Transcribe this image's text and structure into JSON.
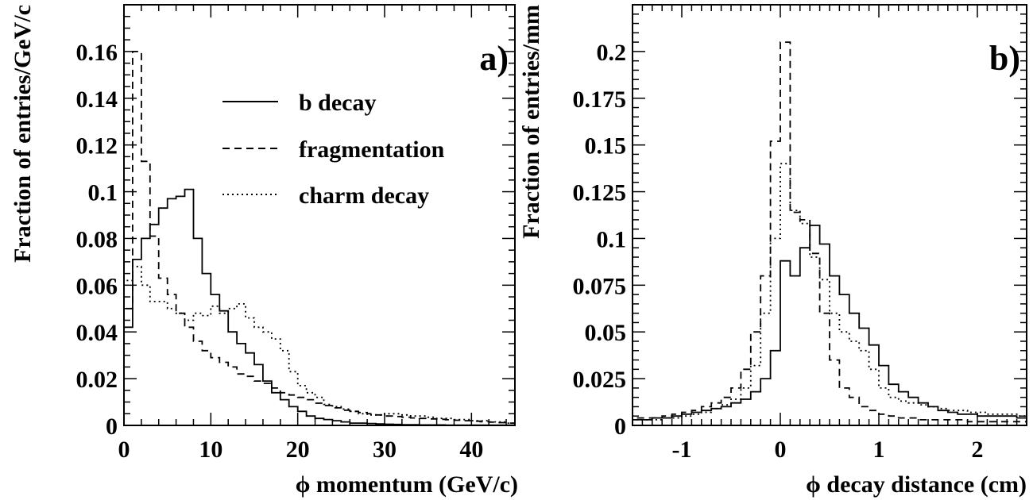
{
  "chart_data": [
    {
      "type": "histogram",
      "panel_label": "a)",
      "xlabel": "ϕ momentum (GeV/c)",
      "ylabel": "Fraction of entries/GeV/c",
      "xlim": [
        0,
        45
      ],
      "ylim": [
        0,
        0.18
      ],
      "x_ticks": [
        0,
        10,
        20,
        30,
        40
      ],
      "y_ticks": [
        0,
        0.02,
        0.04,
        0.06,
        0.08,
        0.1,
        0.12,
        0.14,
        0.16
      ],
      "y_tick_labels": [
        "0",
        "0.02",
        "0.04",
        "0.06",
        "0.08",
        "0.1",
        "0.12",
        "0.14",
        "0.16"
      ],
      "bin_edges": [
        0,
        1,
        2,
        3,
        4,
        5,
        6,
        7,
        8,
        9,
        10,
        11,
        12,
        13,
        14,
        15,
        16,
        17,
        18,
        19,
        20,
        21,
        22,
        23,
        24,
        25,
        26,
        27,
        28,
        29,
        30,
        31,
        32,
        33,
        34,
        35,
        36,
        37,
        38,
        39,
        40,
        41,
        42,
        43,
        44,
        45
      ],
      "grid": false,
      "legend_position": "top-right",
      "series": [
        {
          "name": "b decay",
          "style": "solid",
          "values": [
            0.042,
            0.071,
            0.08,
            0.086,
            0.093,
            0.097,
            0.098,
            0.101,
            0.08,
            0.065,
            0.056,
            0.049,
            0.04,
            0.035,
            0.031,
            0.026,
            0.019,
            0.014,
            0.011,
            0.008,
            0.006,
            0.004,
            0.003,
            0.0025,
            0.002,
            0.0015,
            0.001,
            0.001,
            0.0008,
            0.0006,
            0.0005,
            0.0004,
            0.0003,
            0.0003,
            0.0002,
            0.0002,
            0.0002,
            0.0001,
            0.0001,
            0.0001,
            0.0001,
            0.0001,
            0.0001,
            0.0001,
            0.0001
          ]
        },
        {
          "name": "fragmentation",
          "style": "dashed",
          "values": [
            0.05,
            0.16,
            0.113,
            0.081,
            0.063,
            0.056,
            0.048,
            0.042,
            0.036,
            0.032,
            0.029,
            0.027,
            0.025,
            0.022,
            0.021,
            0.019,
            0.018,
            0.016,
            0.014,
            0.013,
            0.012,
            0.011,
            0.0095,
            0.0085,
            0.0075,
            0.0065,
            0.006,
            0.0055,
            0.005,
            0.0045,
            0.004,
            0.0038,
            0.0035,
            0.0032,
            0.003,
            0.0028,
            0.0026,
            0.0024,
            0.0022,
            0.002,
            0.0018,
            0.0016,
            0.0014,
            0.0012,
            0.001
          ]
        },
        {
          "name": "charm decay",
          "style": "dotted",
          "values": [
            0.062,
            0.068,
            0.06,
            0.053,
            0.053,
            0.05,
            0.048,
            0.045,
            0.048,
            0.047,
            0.051,
            0.048,
            0.05,
            0.052,
            0.046,
            0.042,
            0.04,
            0.037,
            0.032,
            0.023,
            0.017,
            0.014,
            0.012,
            0.009,
            0.008,
            0.007,
            0.006,
            0.005,
            0.0045,
            0.0045,
            0.005,
            0.005,
            0.0045,
            0.004,
            0.004,
            0.0035,
            0.003,
            0.003,
            0.0025,
            0.0025,
            0.002,
            0.002,
            0.0015,
            0.0015,
            0.001
          ]
        }
      ]
    },
    {
      "type": "histogram",
      "panel_label": "b)",
      "xlabel": "ϕ decay distance (cm)",
      "ylabel": "Fraction of entries/mm",
      "xlim": [
        -1.5,
        2.5
      ],
      "ylim": [
        0,
        0.225
      ],
      "x_ticks": [
        -1,
        0,
        1,
        2
      ],
      "y_ticks": [
        0,
        0.025,
        0.05,
        0.075,
        0.1,
        0.125,
        0.15,
        0.175,
        0.2
      ],
      "y_tick_labels": [
        "0",
        "0.025",
        "0.05",
        "0.075",
        "0.1",
        "0.125",
        "0.15",
        "0.175",
        "0.2"
      ],
      "bin_start": -1.5,
      "bin_width": 0.1,
      "grid": false,
      "series": [
        {
          "name": "b decay",
          "style": "solid",
          "values": [
            0.003,
            0.003,
            0.004,
            0.004,
            0.005,
            0.006,
            0.007,
            0.008,
            0.009,
            0.01,
            0.012,
            0.014,
            0.018,
            0.025,
            0.04,
            0.088,
            0.08,
            0.095,
            0.107,
            0.097,
            0.08,
            0.07,
            0.06,
            0.052,
            0.043,
            0.032,
            0.022,
            0.018,
            0.015,
            0.012,
            0.01,
            0.008,
            0.007,
            0.006,
            0.006,
            0.005,
            0.005,
            0.005,
            0.005,
            0.004
          ]
        },
        {
          "name": "fragmentation",
          "style": "dashed",
          "values": [
            0.004,
            0.004,
            0.004,
            0.005,
            0.006,
            0.007,
            0.008,
            0.01,
            0.012,
            0.015,
            0.02,
            0.03,
            0.05,
            0.08,
            0.152,
            0.205,
            0.114,
            0.11,
            0.092,
            0.06,
            0.035,
            0.02,
            0.015,
            0.01,
            0.008,
            0.006,
            0.005,
            0.004,
            0.004,
            0.003,
            0.003,
            0.003,
            0.003,
            0.003,
            0.002,
            0.002,
            0.002,
            0.002,
            0.002,
            0.002
          ]
        },
        {
          "name": "charm decay",
          "style": "dotted",
          "values": [
            0.003,
            0.003,
            0.003,
            0.004,
            0.004,
            0.005,
            0.006,
            0.007,
            0.009,
            0.011,
            0.014,
            0.02,
            0.032,
            0.06,
            0.1,
            0.14,
            0.115,
            0.108,
            0.09,
            0.078,
            0.06,
            0.05,
            0.045,
            0.04,
            0.03,
            0.02,
            0.015,
            0.013,
            0.012,
            0.011,
            0.01,
            0.009,
            0.008,
            0.008,
            0.007,
            0.007,
            0.006,
            0.006,
            0.006,
            0.005
          ]
        }
      ]
    }
  ]
}
